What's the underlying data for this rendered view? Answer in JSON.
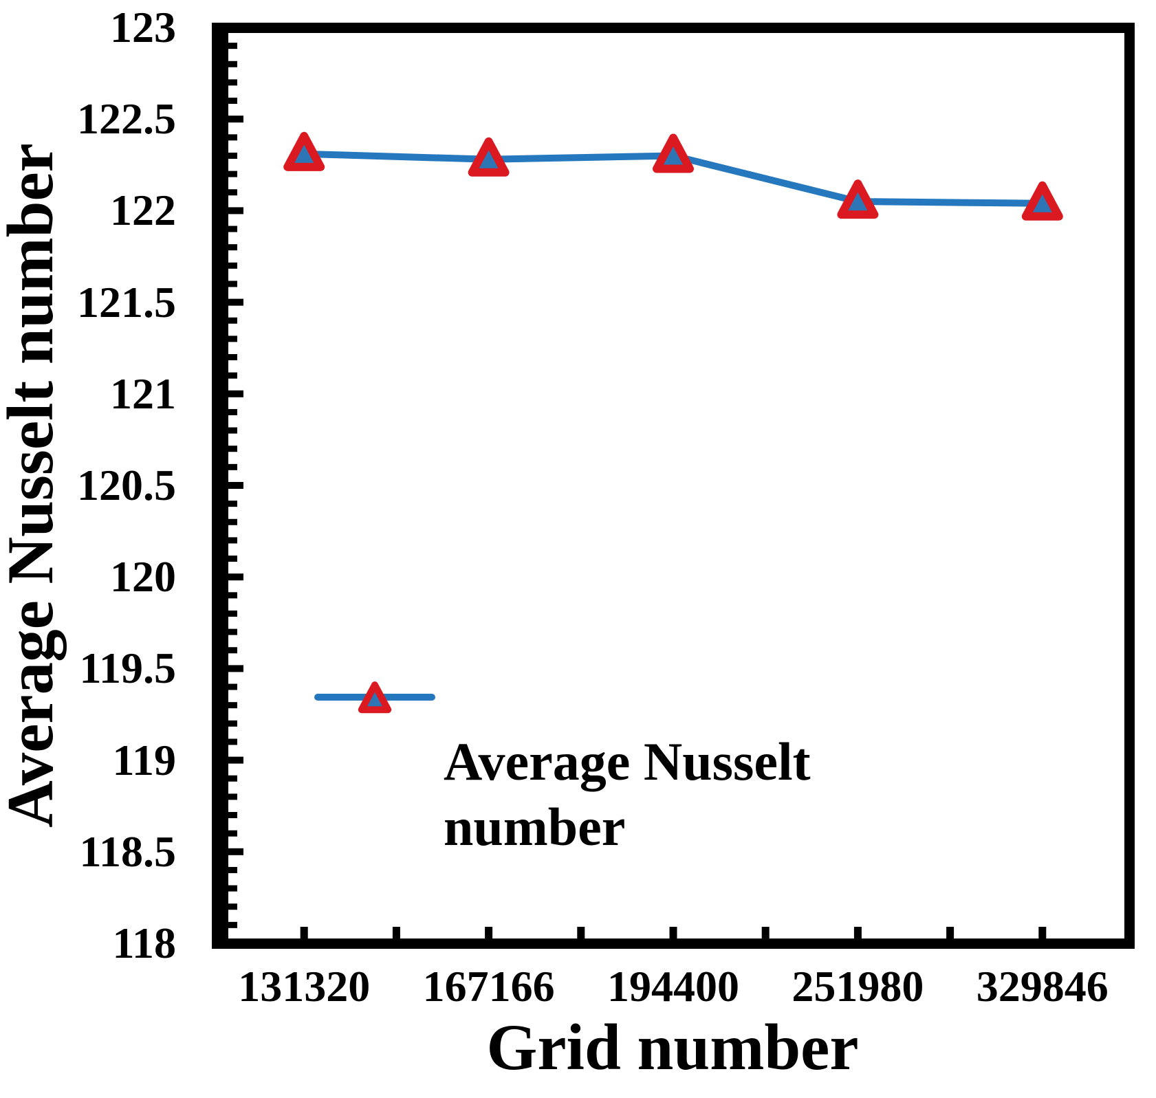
{
  "figure": {
    "x_title": "Grid number",
    "y_title": "Average Nusselt number",
    "legend_label": "Average Nusselt number"
  },
  "chart_data": {
    "type": "line",
    "title": "",
    "xlabel": "Grid number",
    "ylabel": "Average Nusselt number",
    "x_axis_type": "category",
    "categories": [
      "131320",
      "167166",
      "194400",
      "251980",
      "329846"
    ],
    "series": [
      {
        "name": "Average Nusselt number",
        "values": [
          122.31,
          122.28,
          122.3,
          122.05,
          122.04
        ]
      }
    ],
    "ylim": [
      118,
      123
    ],
    "y_major_step": 0.5,
    "y_minor_step": 0.1,
    "y_tick_labels": [
      "123",
      "122.5",
      "122",
      "121.5",
      "121",
      "120.5",
      "120",
      "119.5",
      "119",
      "118.5",
      "118"
    ],
    "grid": false,
    "marker": "triangle-up",
    "legend_position": "inside-lower-left",
    "colors": {
      "line": "#2577BE",
      "marker_fill": "#2E75B6",
      "marker_edge": "#DA1A20",
      "axis": "#000000",
      "text": "#000000",
      "background": "#FFFFFF"
    }
  }
}
